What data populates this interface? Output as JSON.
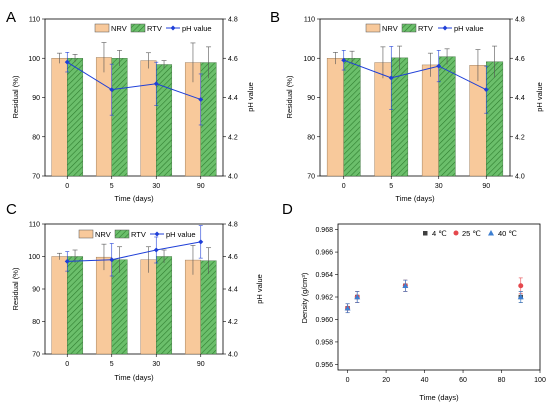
{
  "colors": {
    "nrv": "#F8C99B",
    "rtv": "#6BBF6B",
    "ph": "#1F3FD8",
    "err": "#555555",
    "d4": "#404040",
    "d25": "#E5484D",
    "d40": "#3D7FD1"
  },
  "chart_data": [
    {
      "panel": "A",
      "type": "bar",
      "categories": [
        "0",
        "5",
        "30",
        "90"
      ],
      "xlabel": "Time (days)",
      "ylabel": "Residual (%)",
      "y2label": "pH value",
      "ylim": [
        70,
        110
      ],
      "y_ticks": [
        "70",
        "80",
        "90",
        "100",
        "110"
      ],
      "y2lim": [
        4.0,
        4.8
      ],
      "y2_ticks": [
        "4.0",
        "4.2",
        "4.4",
        "4.6",
        "4.8"
      ],
      "legend": [
        "NRV",
        "RTV",
        "pH value"
      ],
      "series": [
        {
          "name": "NRV",
          "values": [
            100.0,
            100.2,
            99.4,
            98.9
          ],
          "errors": [
            1.3,
            3.8,
            2.0,
            5.0
          ]
        },
        {
          "name": "RTV",
          "values": [
            100.0,
            100.0,
            98.4,
            98.9
          ],
          "errors": [
            1.0,
            2.0,
            1.0,
            4.0
          ]
        },
        {
          "name": "pH value",
          "values": [
            4.58,
            4.44,
            4.47,
            4.39
          ],
          "errors": [
            0.05,
            0.13,
            0.11,
            0.13
          ]
        }
      ]
    },
    {
      "panel": "B",
      "type": "bar",
      "categories": [
        "0",
        "5",
        "30",
        "90"
      ],
      "xlabel": "Time (days)",
      "ylabel": "Residual (%)",
      "y2label": "pH value",
      "ylim": [
        70,
        110
      ],
      "y_ticks": [
        "70",
        "80",
        "90",
        "100",
        "110"
      ],
      "y2lim": [
        4.0,
        4.8
      ],
      "y2_ticks": [
        "4.0",
        "4.2",
        "4.4",
        "4.6",
        "4.8"
      ],
      "legend": [
        "NRV",
        "RTV",
        "pH value"
      ],
      "series": [
        {
          "name": "NRV",
          "values": [
            100.0,
            98.9,
            98.3,
            98.2
          ],
          "errors": [
            1.5,
            4.0,
            3.0,
            4.0
          ]
        },
        {
          "name": "RTV",
          "values": [
            100.0,
            100.1,
            100.4,
            99.1
          ],
          "errors": [
            1.8,
            3.0,
            2.0,
            4.0
          ]
        },
        {
          "name": "pH value",
          "values": [
            4.59,
            4.5,
            4.56,
            4.44
          ],
          "errors": [
            0.05,
            0.16,
            0.08,
            0.12
          ]
        }
      ]
    },
    {
      "panel": "C",
      "type": "bar",
      "categories": [
        "0",
        "5",
        "30",
        "90"
      ],
      "xlabel": "Time (days)",
      "ylabel": "Residual (%)",
      "y2label": "pH value",
      "ylim": [
        70,
        110
      ],
      "y_ticks": [
        "70",
        "80",
        "90",
        "100",
        "110"
      ],
      "y2lim": [
        4.0,
        4.8
      ],
      "y2_ticks": [
        "4.0",
        "4.2",
        "4.4",
        "4.6",
        "4.8"
      ],
      "legend": [
        "NRV",
        "RTV",
        "pH value"
      ],
      "series": [
        {
          "name": "NRV",
          "values": [
            100.0,
            99.8,
            99.0,
            98.9
          ],
          "errors": [
            1.0,
            4.0,
            4.0,
            4.5
          ]
        },
        {
          "name": "RTV",
          "values": [
            100.0,
            99.0,
            100.0,
            98.7
          ],
          "errors": [
            2.0,
            4.0,
            2.0,
            4.0
          ]
        },
        {
          "name": "pH value",
          "values": [
            4.57,
            4.58,
            4.64,
            4.69
          ],
          "errors": [
            0.06,
            0.1,
            0.08,
            0.1
          ]
        }
      ]
    },
    {
      "panel": "D",
      "type": "scatter",
      "xlabel": "Time (days)",
      "ylabel": "Density (g/cm³)",
      "xlim": [
        -5,
        100
      ],
      "x_ticks": [
        "0",
        "20",
        "40",
        "60",
        "80",
        "100"
      ],
      "ylim": [
        0.9555,
        0.9685
      ],
      "y_ticks": [
        "0.956",
        "0.958",
        "0.960",
        "0.962",
        "0.964",
        "0.966",
        "0.968"
      ],
      "legend": [
        "4 ℃",
        "25 ℃",
        "40 ℃"
      ],
      "series": [
        {
          "name": "4 ℃",
          "x": [
            0,
            5,
            30,
            90
          ],
          "y": [
            0.961,
            0.962,
            0.963,
            0.962
          ],
          "errors": [
            0.0004,
            0.0005,
            0.0005,
            0.0005
          ]
        },
        {
          "name": "25 ℃",
          "x": [
            0,
            5,
            30,
            90
          ],
          "y": [
            0.961,
            0.962,
            0.963,
            0.963
          ],
          "errors": [
            0.0004,
            0.0005,
            0.0005,
            0.0007
          ]
        },
        {
          "name": "40 ℃",
          "x": [
            0,
            5,
            30,
            90
          ],
          "y": [
            0.961,
            0.962,
            0.963,
            0.962
          ],
          "errors": [
            0.0004,
            0.0005,
            0.0005,
            0.0005
          ]
        }
      ]
    }
  ]
}
